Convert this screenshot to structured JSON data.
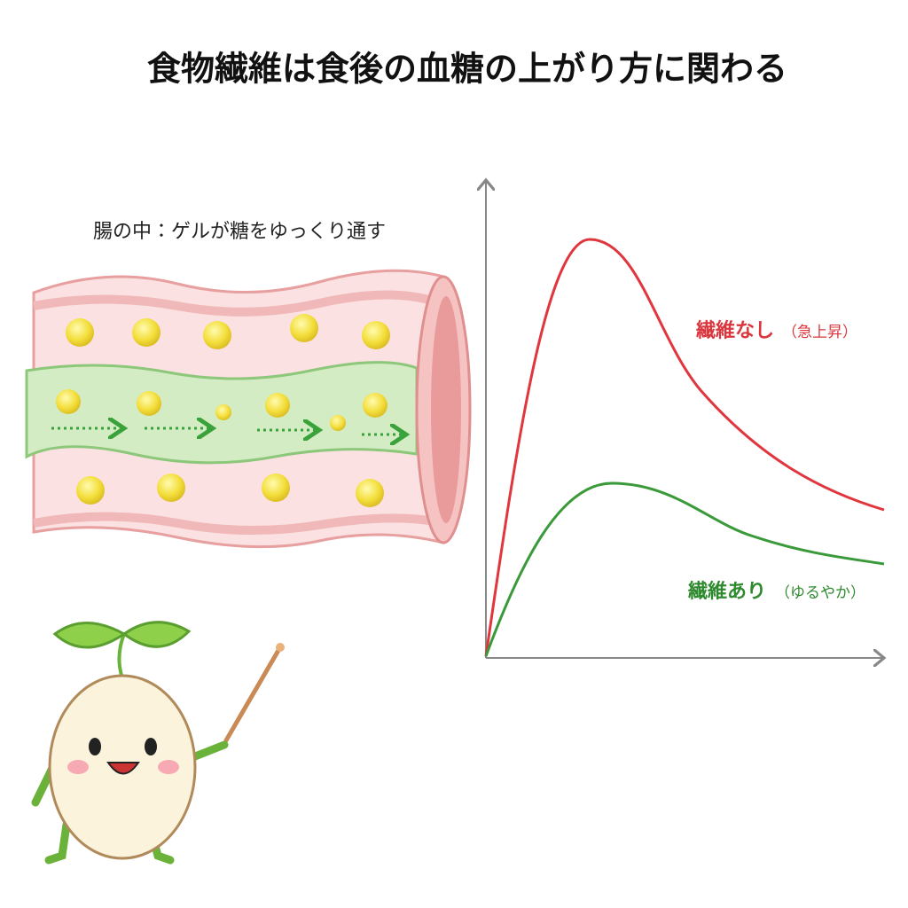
{
  "title": "食物繊維は食後の血糖の上がり方に関わる",
  "intestine": {
    "label": "腸の中：ゲルが糖をゆっくり通す"
  },
  "graph": {
    "no_fiber": {
      "label": "繊維なし",
      "note": "（急上昇）"
    },
    "with_fiber": {
      "label": "繊維あり",
      "note": "（ゆるやか）"
    }
  }
}
